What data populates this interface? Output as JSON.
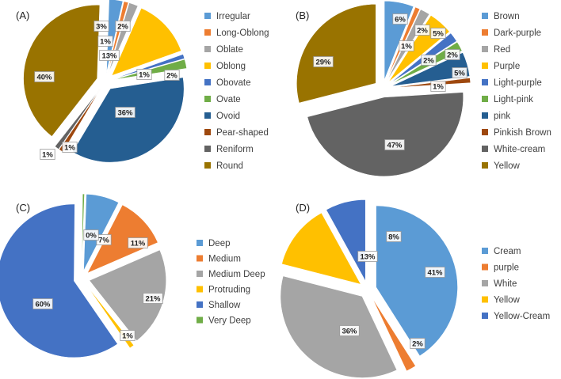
{
  "chart_data": [
    {
      "type": "pie",
      "panel": "(A)",
      "title": "",
      "categories": [
        "Irregular",
        "Long-Oblong",
        "Oblate",
        "Oblong",
        "Obovate",
        "Ovate",
        "Ovoid",
        "Pear-shaped",
        "Reniform",
        "Round"
      ],
      "values": [
        3,
        1,
        2,
        13,
        1,
        2,
        36,
        1,
        1,
        40
      ],
      "data_labels": [
        "3%",
        "1%",
        "2%",
        "13%",
        "1%",
        "2%",
        "36%",
        "1%",
        "1%",
        "40%"
      ],
      "colors": [
        "#5b9bd5",
        "#ed7d31",
        "#a5a5a5",
        "#ffc000",
        "#4472c4",
        "#70ad47",
        "#255e91",
        "#9e480e",
        "#636363",
        "#997300"
      ],
      "legend": "right"
    },
    {
      "type": "pie",
      "panel": "(B)",
      "title": "",
      "categories": [
        "Brown",
        "Dark-purple",
        "Red",
        "Purple",
        "Light-purple",
        "Light-pink",
        "pink",
        "Pinkish Brown",
        "White-cream",
        "Yellow"
      ],
      "values": [
        6,
        1,
        2,
        5,
        2,
        2,
        5,
        1,
        47,
        29
      ],
      "data_labels": [
        "6%",
        "1%",
        "2%",
        "5%",
        "2%",
        "2%",
        "5%",
        "1%",
        "47%",
        "29%"
      ],
      "colors": [
        "#5b9bd5",
        "#ed7d31",
        "#a5a5a5",
        "#ffc000",
        "#4472c4",
        "#70ad47",
        "#255e91",
        "#9e480e",
        "#636363",
        "#997300"
      ],
      "legend": "right"
    },
    {
      "type": "pie",
      "panel": "(C)",
      "title": "",
      "categories": [
        "Deep",
        "Medium",
        "Medium Deep",
        "Protruding",
        "Shallow",
        "Very Deep"
      ],
      "values": [
        7,
        11,
        21,
        1,
        60,
        0.4
      ],
      "data_labels": [
        "7%",
        "11%",
        "21%",
        "1%",
        "60%",
        "0%"
      ],
      "colors": [
        "#5b9bd5",
        "#ed7d31",
        "#a5a5a5",
        "#ffc000",
        "#4472c4",
        "#70ad47"
      ],
      "legend": "right"
    },
    {
      "type": "pie",
      "panel": "(D)",
      "title": "",
      "categories": [
        "Cream",
        "purple",
        "White",
        "Yellow",
        "Yellow-Cream"
      ],
      "values": [
        41,
        2,
        36,
        13,
        8
      ],
      "data_labels": [
        "41%",
        "2%",
        "36%",
        "13%",
        "8%"
      ],
      "colors": [
        "#5b9bd5",
        "#ed7d31",
        "#a5a5a5",
        "#ffc000",
        "#4472c4"
      ],
      "legend": "right"
    }
  ]
}
